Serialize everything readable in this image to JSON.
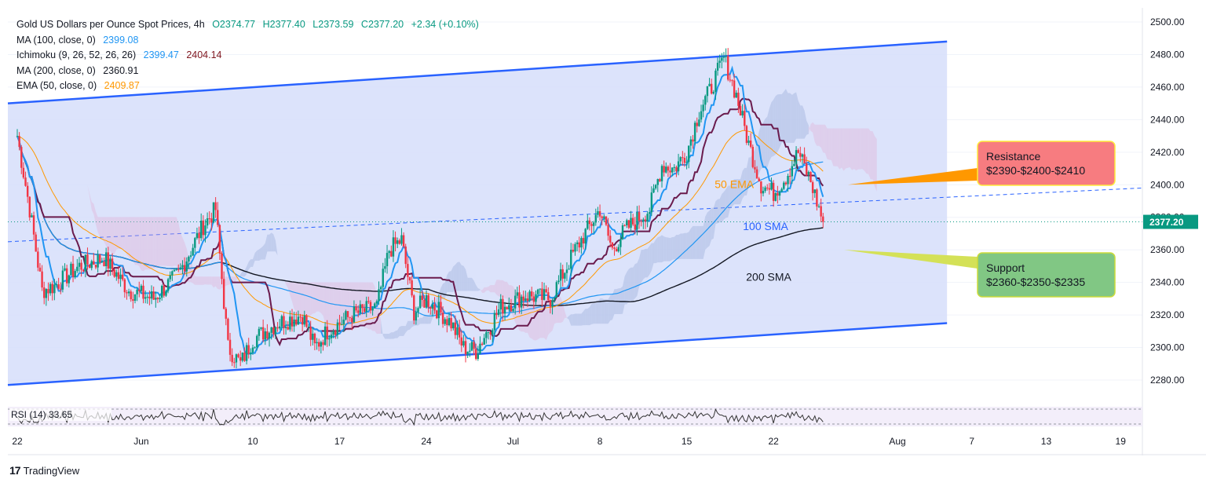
{
  "header": {
    "symbol": "Gold US Dollars per Ounce Spot Prices",
    "timeframe": "4h",
    "open": "O2374.77",
    "high": "H2377.40",
    "low": "L2373.59",
    "close": "C2377.20",
    "change": "+2.34 (+0.10%)"
  },
  "indicators": [
    {
      "label": "MA (100, close, 0)",
      "values": [
        "2399.08"
      ],
      "colors": [
        "#2196f3"
      ]
    },
    {
      "label": "Ichimoku (9, 26, 52, 26, 26)",
      "values": [
        "2399.47",
        "2404.14"
      ],
      "colors": [
        "#2196f3",
        "#801922"
      ]
    },
    {
      "label": "MA (200, close, 0)",
      "values": [
        "2360.91"
      ],
      "colors": [
        "#131722"
      ]
    },
    {
      "label": "EMA (50, close, 0)",
      "values": [
        "2409.87"
      ],
      "colors": [
        "#ff9800"
      ]
    }
  ],
  "annotations": {
    "resistance": {
      "title": "Resistance",
      "levels": "$2390-$2400-$2410",
      "color": "#f77c80"
    },
    "support": {
      "title": "Support",
      "levels": "$2360-$2350-$2335",
      "color": "#81c784"
    },
    "ema50": "50 EMA",
    "sma100": "100 SMA",
    "sma200": "200 SMA"
  },
  "price_tag": "2377.20",
  "rsi": {
    "label": "RSI (14)",
    "value": "33.65"
  },
  "footer": {
    "logo": "17",
    "brand": "TradingView"
  },
  "colors": {
    "up": "#089981",
    "down": "#f23645",
    "channel_fill": "#d6defa",
    "channel_line": "#2962ff",
    "kijun": "#6a1b4d",
    "tenkan": "#2196f3",
    "ema": "#ff9800",
    "sma100": "#2196f3",
    "sma200": "#131722"
  },
  "chart_data": {
    "type": "candlestick",
    "title": "Gold US Dollars per Ounce Spot Prices",
    "timeframe": "4h",
    "ylim": [
      2270,
      2505
    ],
    "y_ticks": [
      "2500.00",
      "2480.00",
      "2460.00",
      "2440.00",
      "2420.00",
      "2400.00",
      "2380.00",
      "2360.00",
      "2340.00",
      "2320.00",
      "2300.00",
      "2280.00"
    ],
    "x_ticks": [
      "22",
      "Jun",
      "10",
      "17",
      "24",
      "Jul",
      "8",
      "15",
      "22",
      "Aug",
      "7",
      "13",
      "19"
    ],
    "x_range": [
      "2024-05-22",
      "2024-08-20"
    ],
    "last_date": "2024-07-26",
    "last_price": 2377.2,
    "price_path": [
      [
        "2024-05-22",
        2430
      ],
      [
        "2024-05-23",
        2385
      ],
      [
        "2024-05-24",
        2335
      ],
      [
        "2024-05-25",
        2338
      ],
      [
        "2024-05-27",
        2350
      ],
      [
        "2024-05-29",
        2355
      ],
      [
        "2024-05-31",
        2335
      ],
      [
        "2024-06-02",
        2330
      ],
      [
        "2024-06-04",
        2345
      ],
      [
        "2024-06-06",
        2375
      ],
      [
        "2024-06-07",
        2385
      ],
      [
        "2024-06-08",
        2300
      ],
      [
        "2024-06-09",
        2290
      ],
      [
        "2024-06-10",
        2305
      ],
      [
        "2024-06-12",
        2315
      ],
      [
        "2024-06-14",
        2320
      ],
      [
        "2024-06-15",
        2300
      ],
      [
        "2024-06-16",
        2310
      ],
      [
        "2024-06-18",
        2320
      ],
      [
        "2024-06-20",
        2325
      ],
      [
        "2024-06-21",
        2360
      ],
      [
        "2024-06-22",
        2366
      ],
      [
        "2024-06-23",
        2322
      ],
      [
        "2024-06-24",
        2330
      ],
      [
        "2024-06-26",
        2315
      ],
      [
        "2024-06-27",
        2300
      ],
      [
        "2024-06-28",
        2298
      ],
      [
        "2024-06-30",
        2325
      ],
      [
        "2024-07-02",
        2332
      ],
      [
        "2024-07-04",
        2330
      ],
      [
        "2024-07-06",
        2360
      ],
      [
        "2024-07-08",
        2385
      ],
      [
        "2024-07-09",
        2360
      ],
      [
        "2024-07-10",
        2372
      ],
      [
        "2024-07-12",
        2385
      ],
      [
        "2024-07-13",
        2412
      ],
      [
        "2024-07-14",
        2410
      ],
      [
        "2024-07-15",
        2420
      ],
      [
        "2024-07-16",
        2445
      ],
      [
        "2024-07-17",
        2460
      ],
      [
        "2024-07-18",
        2478
      ],
      [
        "2024-07-19",
        2455
      ],
      [
        "2024-07-20",
        2425
      ],
      [
        "2024-07-21",
        2400
      ],
      [
        "2024-07-22",
        2395
      ],
      [
        "2024-07-23",
        2405
      ],
      [
        "2024-07-24",
        2420
      ],
      [
        "2024-07-25",
        2402
      ],
      [
        "2024-07-26",
        2377.2
      ]
    ],
    "series": [
      {
        "name": "MA (100, close, 0)",
        "last": 2399.08
      },
      {
        "name": "EMA (50, close, 0)",
        "last": 2409.87
      },
      {
        "name": "MA (200, close, 0)",
        "last": 2360.91
      },
      {
        "name": "Ichimoku (9, 26, 52, 26, 26)",
        "values": [
          2399.47,
          2404.14
        ]
      }
    ],
    "channel": {
      "upper": [
        [
          "2024-05-22",
          2450
        ],
        [
          "2024-08-05",
          2488
        ]
      ],
      "lower": [
        [
          "2024-05-22",
          2277
        ],
        [
          "2024-08-05",
          2315
        ]
      ]
    },
    "levels": {
      "resistance": [
        2390,
        2400,
        2410
      ],
      "support": [
        2360,
        2350,
        2335
      ]
    },
    "rsi": {
      "name": "RSI (14)",
      "last": 33.65
    }
  }
}
